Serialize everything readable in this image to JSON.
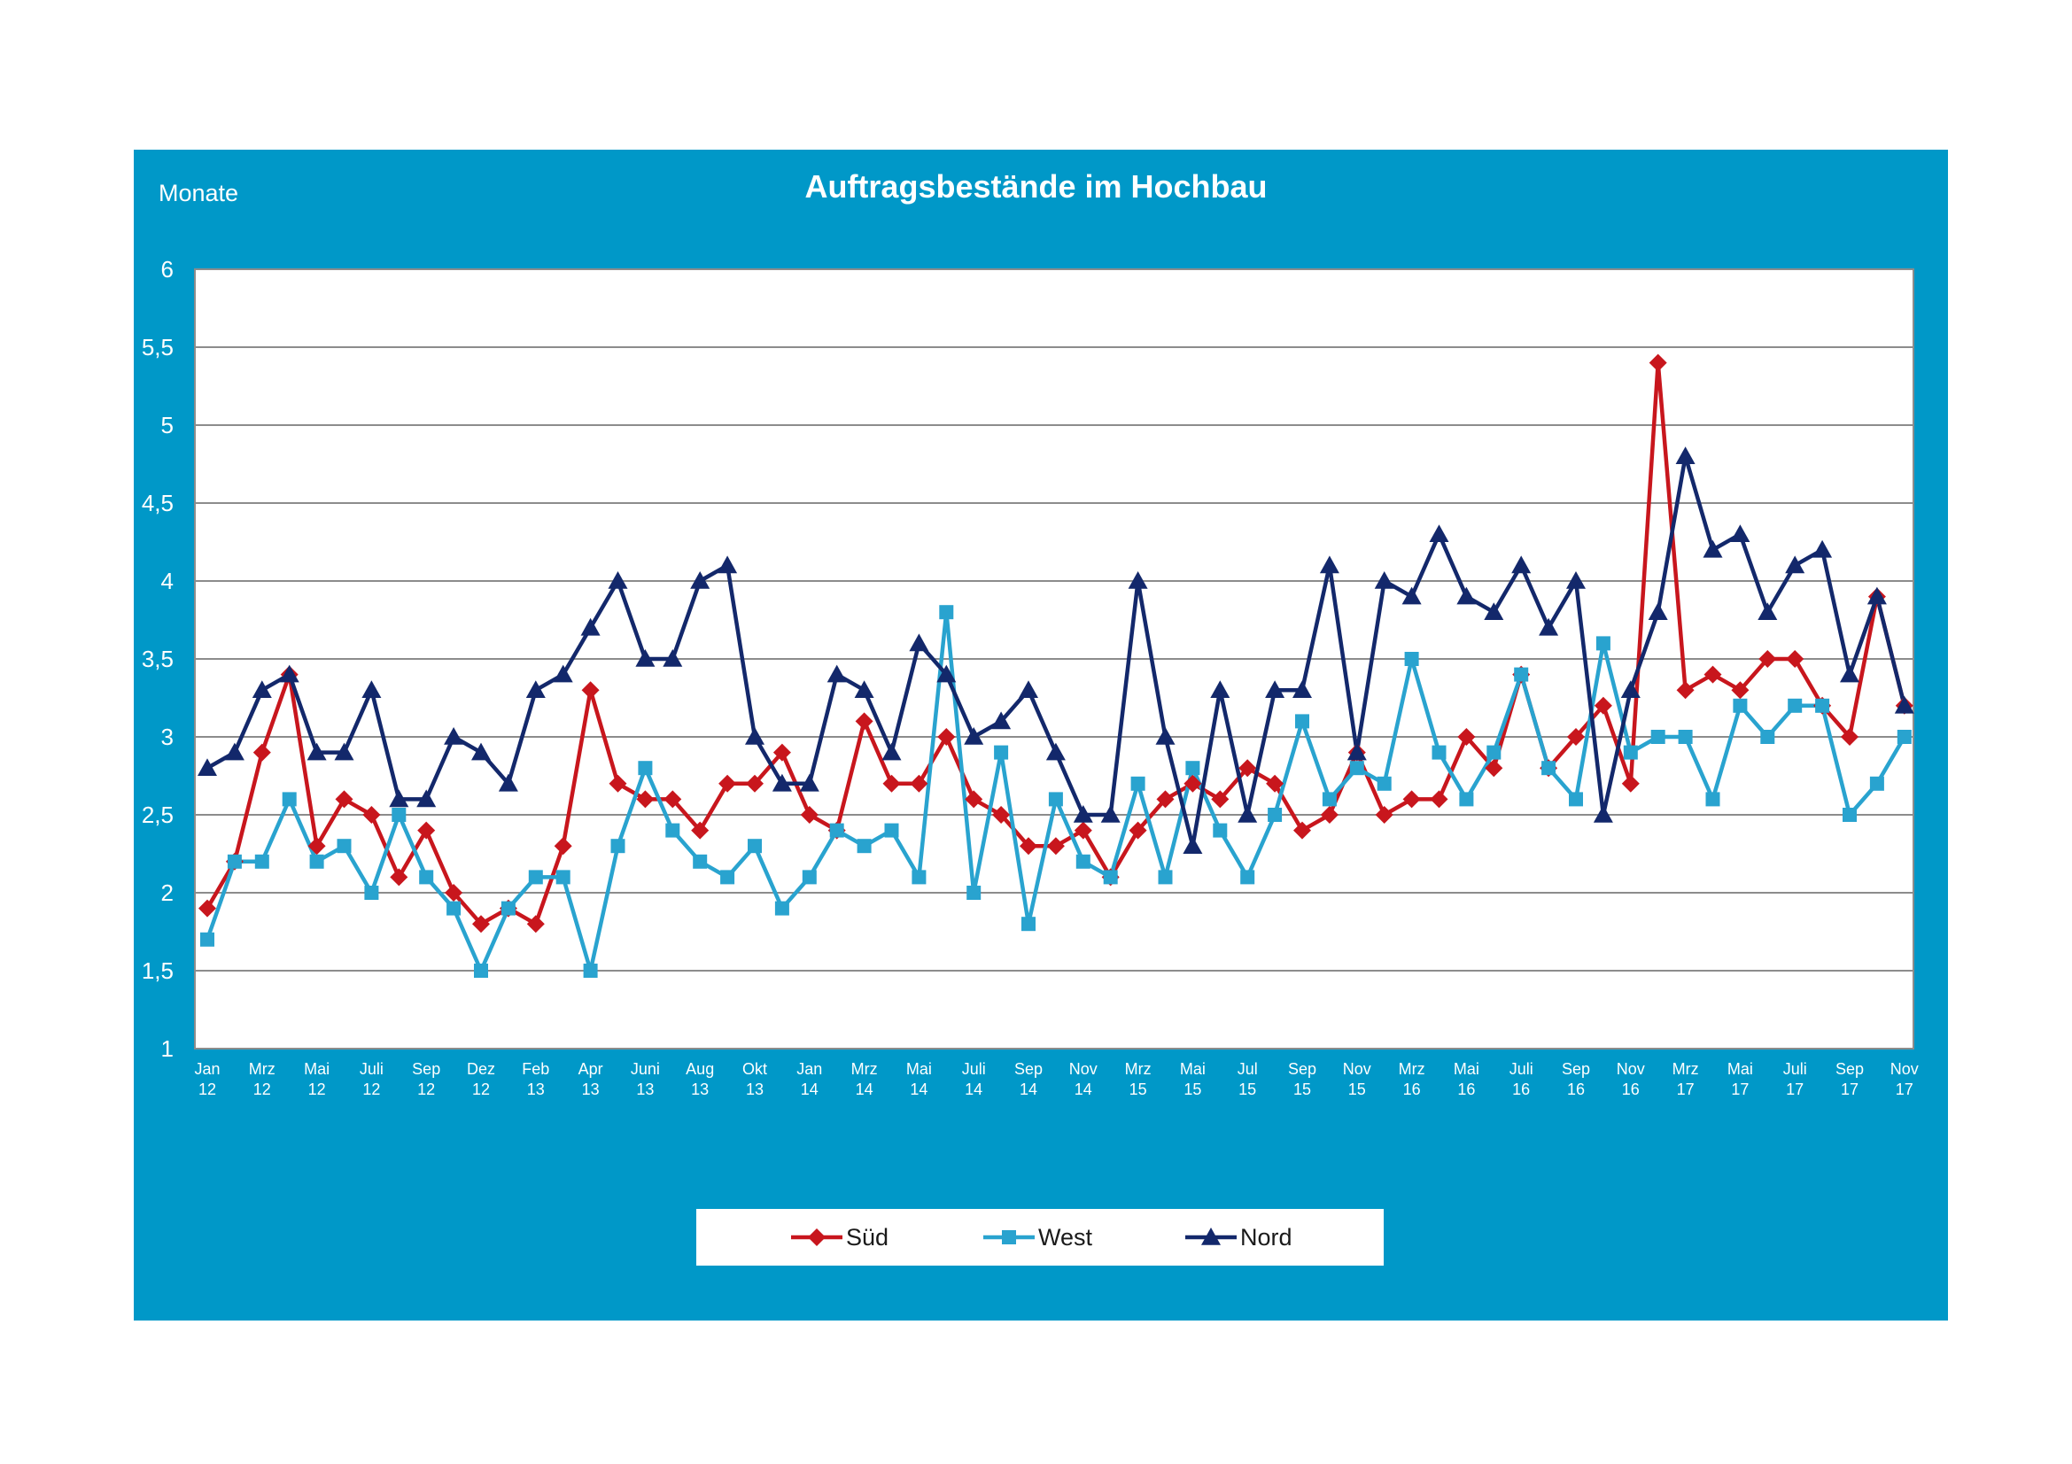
{
  "chart_data": {
    "type": "line",
    "title": "Auftragsbestände im Hochbau",
    "ylabel": "Monate",
    "xlabel": "",
    "ylim": [
      1,
      6
    ],
    "yticks": [
      "1",
      "1,5",
      "2",
      "2,5",
      "3",
      "3,5",
      "4",
      "4,5",
      "5",
      "5,5",
      "6"
    ],
    "grid": true,
    "legend_position": "bottom",
    "x_tick_labels": [
      {
        "month": "Jan",
        "year": "12"
      },
      {
        "month": "Mrz",
        "year": "12"
      },
      {
        "month": "Mai",
        "year": "12"
      },
      {
        "month": "Juli",
        "year": "12"
      },
      {
        "month": "Sep",
        "year": "12"
      },
      {
        "month": "Dez",
        "year": "12"
      },
      {
        "month": "Feb",
        "year": "13"
      },
      {
        "month": "Apr",
        "year": "13"
      },
      {
        "month": "Juni",
        "year": "13"
      },
      {
        "month": "Aug",
        "year": "13"
      },
      {
        "month": "Okt",
        "year": "13"
      },
      {
        "month": "Jan",
        "year": "14"
      },
      {
        "month": "Mrz",
        "year": "14"
      },
      {
        "month": "Mai",
        "year": "14"
      },
      {
        "month": "Juli",
        "year": "14"
      },
      {
        "month": "Sep",
        "year": "14"
      },
      {
        "month": "Nov",
        "year": "14"
      },
      {
        "month": "Mrz",
        "year": "15"
      },
      {
        "month": "Mai",
        "year": "15"
      },
      {
        "month": "Jul",
        "year": "15"
      },
      {
        "month": "Sep",
        "year": "15"
      },
      {
        "month": "Nov",
        "year": "15"
      },
      {
        "month": "Mrz",
        "year": "16"
      },
      {
        "month": "Mai",
        "year": "16"
      },
      {
        "month": "Juli",
        "year": "16"
      },
      {
        "month": "Sep",
        "year": "16"
      },
      {
        "month": "Nov",
        "year": "16"
      },
      {
        "month": "Mrz",
        "year": "17"
      },
      {
        "month": "Mai",
        "year": "17"
      },
      {
        "month": "Juli",
        "year": "17"
      },
      {
        "month": "Sep",
        "year": "17"
      },
      {
        "month": "Nov",
        "year": "17"
      }
    ],
    "series": [
      {
        "name": "Süd",
        "color": "#c8161d",
        "marker": "diamond",
        "values": [
          1.9,
          2.2,
          2.9,
          3.4,
          2.3,
          2.6,
          2.5,
          2.1,
          2.4,
          2.0,
          1.8,
          1.9,
          1.8,
          2.3,
          3.3,
          2.7,
          2.6,
          2.6,
          2.4,
          2.7,
          2.7,
          2.9,
          2.5,
          2.4,
          3.1,
          2.7,
          2.7,
          3.0,
          2.6,
          2.5,
          2.3,
          2.3,
          2.4,
          2.1,
          2.4,
          2.6,
          2.7,
          2.6,
          2.8,
          2.7,
          2.4,
          2.5,
          2.9,
          2.5,
          2.6,
          2.6,
          3.0,
          2.8,
          3.4,
          2.8,
          3.0,
          3.2,
          2.7,
          5.4,
          3.3,
          3.4,
          3.3,
          3.5,
          3.5,
          3.2,
          3.0,
          3.9,
          3.2
        ]
      },
      {
        "name": "West",
        "color": "#29a3cf",
        "marker": "square",
        "values": [
          1.7,
          2.2,
          2.2,
          2.6,
          2.2,
          2.3,
          2.0,
          2.5,
          2.1,
          1.9,
          1.5,
          1.9,
          2.1,
          2.1,
          1.5,
          2.3,
          2.8,
          2.4,
          2.2,
          2.1,
          2.3,
          1.9,
          2.1,
          2.4,
          2.3,
          2.4,
          2.1,
          3.8,
          2.0,
          2.9,
          1.8,
          2.6,
          2.2,
          2.1,
          2.7,
          2.1,
          2.8,
          2.4,
          2.1,
          2.5,
          3.1,
          2.6,
          2.8,
          2.7,
          3.5,
          2.9,
          2.6,
          2.9,
          3.4,
          2.8,
          2.6,
          3.6,
          2.9,
          3.0,
          3.0,
          2.6,
          3.2,
          3.0,
          3.2,
          3.2,
          2.5,
          2.7,
          3.0
        ]
      },
      {
        "name": "Nord",
        "color": "#13286b",
        "marker": "triangle",
        "values": [
          2.8,
          2.9,
          3.3,
          3.4,
          2.9,
          2.9,
          3.3,
          2.6,
          2.6,
          3.0,
          2.9,
          2.7,
          3.3,
          3.4,
          3.7,
          4.0,
          3.5,
          3.5,
          4.0,
          4.1,
          3.0,
          2.7,
          2.7,
          3.4,
          3.3,
          2.9,
          3.6,
          3.4,
          3.0,
          3.1,
          3.3,
          2.9,
          2.5,
          2.5,
          4.0,
          3.0,
          2.3,
          3.3,
          2.5,
          3.3,
          3.3,
          4.1,
          2.9,
          4.0,
          3.9,
          4.3,
          3.9,
          3.8,
          4.1,
          3.7,
          4.0,
          2.5,
          3.3,
          3.8,
          4.8,
          4.2,
          4.3,
          3.8,
          4.1,
          4.2,
          3.4,
          3.9,
          3.2
        ]
      }
    ]
  }
}
